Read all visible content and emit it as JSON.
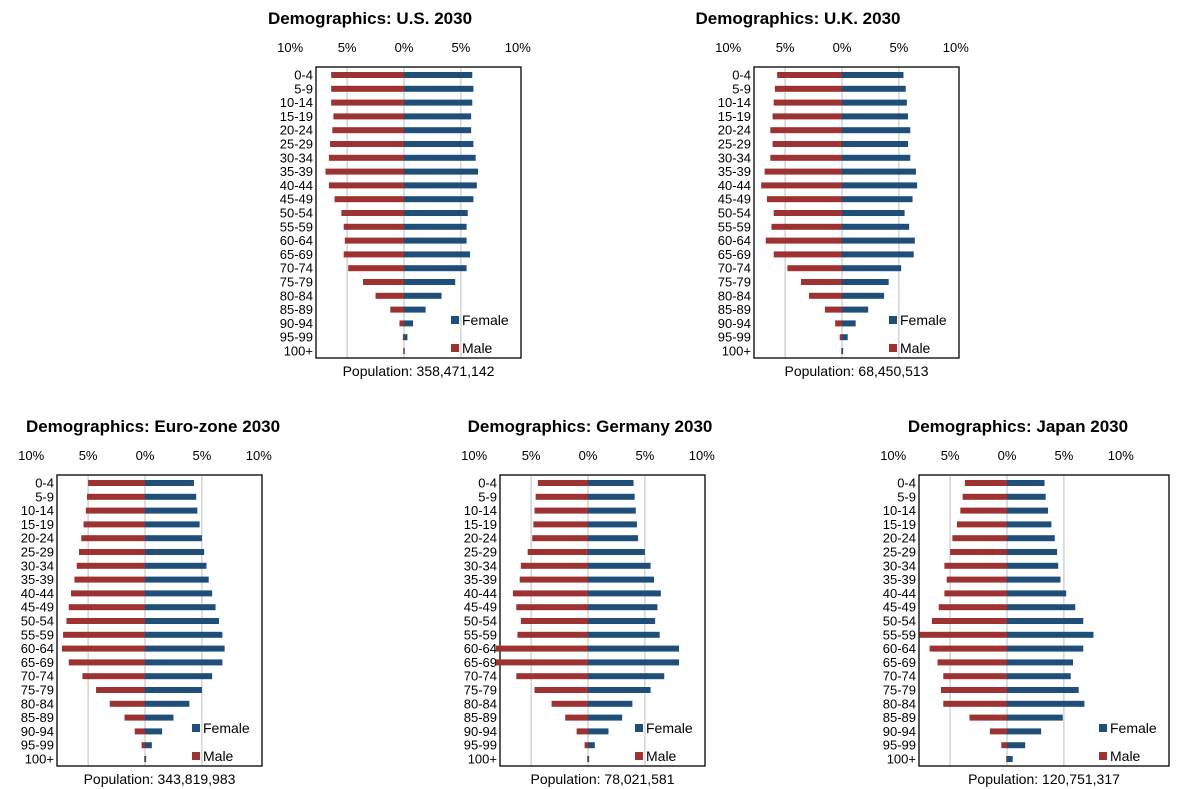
{
  "colors": {
    "female": "#1f4e79",
    "male": "#9e3232",
    "grid": "#bfbfbf",
    "frame": "#000000"
  },
  "chart_data": [
    {
      "type": "bar",
      "orientation": "horizontal-population-pyramid",
      "title": "Demographics: U.S. 2030",
      "categories": [
        "0-4",
        "5-9",
        "10-14",
        "15-19",
        "20-24",
        "25-29",
        "30-34",
        "35-39",
        "40-44",
        "45-49",
        "50-54",
        "55-59",
        "60-64",
        "65-69",
        "70-74",
        "75-79",
        "80-84",
        "85-89",
        "90-94",
        "95-99",
        "100+"
      ],
      "x_ticks": [
        "10%",
        "5%",
        "0%",
        "5%",
        "10%"
      ],
      "xlim": [
        -10,
        10
      ],
      "series": [
        {
          "name": "Female",
          "values": [
            6.0,
            6.1,
            6.0,
            5.9,
            5.9,
            6.1,
            6.3,
            6.5,
            6.4,
            6.1,
            5.6,
            5.5,
            5.5,
            5.8,
            5.5,
            4.5,
            3.3,
            1.9,
            0.8,
            0.3,
            0.05
          ]
        },
        {
          "name": "Male",
          "values": [
            6.4,
            6.4,
            6.4,
            6.2,
            6.3,
            6.5,
            6.6,
            6.9,
            6.6,
            6.1,
            5.5,
            5.3,
            5.2,
            5.3,
            4.9,
            3.6,
            2.5,
            1.2,
            0.4,
            0.1,
            0.02
          ]
        }
      ],
      "legend": "bottom-right",
      "grid": true,
      "footer": "Population: 358,471,142"
    },
    {
      "type": "bar",
      "orientation": "horizontal-population-pyramid",
      "title": "Demographics: U.K. 2030",
      "categories": [
        "0-4",
        "5-9",
        "10-14",
        "15-19",
        "20-24",
        "25-29",
        "30-34",
        "35-39",
        "40-44",
        "45-49",
        "50-54",
        "55-59",
        "60-64",
        "65-69",
        "70-74",
        "75-79",
        "80-84",
        "85-89",
        "90-94",
        "95-99",
        "100+"
      ],
      "x_ticks": [
        "10%",
        "5%",
        "0%",
        "5%",
        "10%"
      ],
      "xlim": [
        -10,
        10
      ],
      "series": [
        {
          "name": "Female",
          "values": [
            5.4,
            5.6,
            5.7,
            5.8,
            6.0,
            5.8,
            6.0,
            6.5,
            6.6,
            6.2,
            5.5,
            5.9,
            6.4,
            6.3,
            5.2,
            4.1,
            3.7,
            2.3,
            1.2,
            0.5,
            0.1
          ]
        },
        {
          "name": "Male",
          "values": [
            5.7,
            5.9,
            6.0,
            6.1,
            6.3,
            6.1,
            6.3,
            6.8,
            7.1,
            6.6,
            6.0,
            6.2,
            6.7,
            6.0,
            4.8,
            3.6,
            2.9,
            1.5,
            0.6,
            0.2,
            0.02
          ]
        }
      ],
      "legend": "bottom-right",
      "grid": true,
      "footer": "Population: 68,450,513"
    },
    {
      "type": "bar",
      "orientation": "horizontal-population-pyramid",
      "title": "Demographics: Euro-zone 2030",
      "categories": [
        "0-4",
        "5-9",
        "10-14",
        "15-19",
        "20-24",
        "25-29",
        "30-34",
        "35-39",
        "40-44",
        "45-49",
        "50-54",
        "55-59",
        "60-64",
        "65-69",
        "70-74",
        "75-79",
        "80-84",
        "85-89",
        "90-94",
        "95-99",
        "100+"
      ],
      "x_ticks": [
        "10%",
        "5%",
        "0%",
        "5%",
        "10%"
      ],
      "xlim": [
        -10,
        10
      ],
      "series": [
        {
          "name": "Female",
          "values": [
            4.3,
            4.5,
            4.6,
            4.8,
            5.0,
            5.2,
            5.4,
            5.6,
            5.9,
            6.2,
            6.5,
            6.8,
            7.0,
            6.8,
            5.9,
            5.0,
            3.9,
            2.5,
            1.5,
            0.6,
            0.1
          ]
        },
        {
          "name": "Male",
          "values": [
            5.0,
            5.1,
            5.2,
            5.4,
            5.6,
            5.8,
            6.0,
            6.2,
            6.5,
            6.7,
            6.9,
            7.2,
            7.3,
            6.7,
            5.5,
            4.3,
            3.1,
            1.8,
            0.9,
            0.3,
            0.03
          ]
        }
      ],
      "legend": "bottom-right",
      "grid": true,
      "footer": "Population: 343,819,983"
    },
    {
      "type": "bar",
      "orientation": "horizontal-population-pyramid",
      "title": "Demographics: Germany 2030",
      "categories": [
        "0-4",
        "5-9",
        "10-14",
        "15-19",
        "20-24",
        "25-29",
        "30-34",
        "35-39",
        "40-44",
        "45-49",
        "50-54",
        "55-59",
        "60-64",
        "65-69",
        "70-74",
        "75-79",
        "80-84",
        "85-89",
        "90-94",
        "95-99",
        "100+"
      ],
      "x_ticks": [
        "10%",
        "5%",
        "0%",
        "5%",
        "10%"
      ],
      "xlim": [
        -10,
        10
      ],
      "series": [
        {
          "name": "Female",
          "values": [
            4.0,
            4.1,
            4.2,
            4.3,
            4.4,
            5.0,
            5.5,
            5.8,
            6.4,
            6.1,
            5.9,
            6.3,
            8.0,
            8.0,
            6.7,
            5.5,
            3.9,
            3.0,
            1.8,
            0.6,
            0.1
          ]
        },
        {
          "name": "Male",
          "values": [
            4.4,
            4.6,
            4.7,
            4.8,
            4.9,
            5.3,
            5.9,
            6.0,
            6.6,
            6.3,
            5.9,
            6.2,
            8.1,
            8.1,
            6.3,
            4.7,
            3.2,
            2.0,
            1.0,
            0.3,
            0.03
          ]
        }
      ],
      "legend": "bottom-right",
      "grid": true,
      "footer": "Population: 78,021,581"
    },
    {
      "type": "bar",
      "orientation": "horizontal-population-pyramid",
      "title": "Demographics: Japan 2030",
      "categories": [
        "0-4",
        "5-9",
        "10-14",
        "15-19",
        "20-24",
        "25-29",
        "30-34",
        "35-39",
        "40-44",
        "45-49",
        "50-54",
        "55-59",
        "60-64",
        "65-69",
        "70-74",
        "75-79",
        "80-84",
        "85-89",
        "90-94",
        "95-99",
        "100+"
      ],
      "x_ticks": [
        "10%",
        "5%",
        "0%",
        "5%",
        "10%"
      ],
      "xlim": [
        -10,
        10
      ],
      "series": [
        {
          "name": "Female",
          "values": [
            3.3,
            3.4,
            3.6,
            3.9,
            4.2,
            4.4,
            4.5,
            4.7,
            5.2,
            6.0,
            6.7,
            7.6,
            6.7,
            5.8,
            5.6,
            6.3,
            6.8,
            4.9,
            3.0,
            1.6,
            0.5
          ]
        },
        {
          "name": "Male",
          "values": [
            3.7,
            3.9,
            4.1,
            4.4,
            4.8,
            5.0,
            5.5,
            5.3,
            5.5,
            6.0,
            6.6,
            7.7,
            6.8,
            6.1,
            5.6,
            5.8,
            5.6,
            3.3,
            1.5,
            0.5,
            0.05
          ]
        }
      ],
      "legend": "bottom-right",
      "grid": true,
      "footer": "Population: 120,751,317"
    }
  ]
}
